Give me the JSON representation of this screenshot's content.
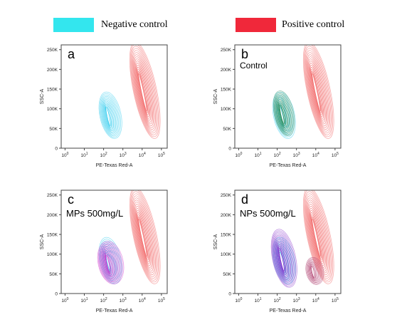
{
  "legend": [
    {
      "label": "Negative control",
      "color": "#33e6ee"
    },
    {
      "label": "Positive control",
      "color": "#f0283a"
    }
  ],
  "chart_data": [
    {
      "type": "contour",
      "panel_letter": "a",
      "annotation": "",
      "xlabel": "PE-Texas Red-A",
      "ylabel": "SSC-A",
      "x_scale": "log",
      "x_ticks": [
        "0",
        "1",
        "2",
        "3",
        "4",
        "5"
      ],
      "x_tick_prefix": "10",
      "y_ticks": [
        "0",
        "50K",
        "100K",
        "150K",
        "200K",
        "250K"
      ],
      "ylim": [
        0,
        262144
      ],
      "series": [
        {
          "color": "#33ccee",
          "center": [
            2.3,
            80000
          ],
          "spread": [
            0.55,
            60000
          ],
          "rings": 11
        },
        {
          "color": "#f26d6d",
          "center": [
            4.1,
            140000
          ],
          "spread": [
            0.6,
            125000
          ],
          "rings": 16
        }
      ]
    },
    {
      "type": "contour",
      "panel_letter": "b",
      "annotation": "Control",
      "xlabel": "PE-Texas Red-A",
      "ylabel": "SSC-A",
      "x_scale": "log",
      "x_ticks": [
        "0",
        "1",
        "2",
        "3",
        "4",
        "5"
      ],
      "x_tick_prefix": "10",
      "y_ticks": [
        "0",
        "50K",
        "100K",
        "150K",
        "200K",
        "250K"
      ],
      "ylim": [
        0,
        262144
      ],
      "series": [
        {
          "color": "#33ccee",
          "center": [
            2.3,
            80000
          ],
          "spread": [
            0.55,
            60000
          ],
          "rings": 9
        },
        {
          "color": "#f26d6d",
          "center": [
            4.1,
            140000
          ],
          "spread": [
            0.6,
            125000
          ],
          "rings": 16
        },
        {
          "color": "#2e8b57",
          "center": [
            2.3,
            85000
          ],
          "spread": [
            0.5,
            58000
          ],
          "rings": 11
        }
      ]
    },
    {
      "type": "contour",
      "panel_letter": "c",
      "annotation": "MPs 500mg/L",
      "xlabel": "PE-Texas Red-A",
      "ylabel": "SSC-A",
      "x_scale": "log",
      "x_ticks": [
        "0",
        "1",
        "2",
        "3",
        "4",
        "5"
      ],
      "x_tick_prefix": "10",
      "y_ticks": [
        "0",
        "50K",
        "100K",
        "150K",
        "200K",
        "250K"
      ],
      "ylim": [
        0,
        262144
      ],
      "series": [
        {
          "color": "#33ccee",
          "center": [
            2.3,
            80000
          ],
          "spread": [
            0.55,
            60000
          ],
          "rings": 9
        },
        {
          "color": "#f26d6d",
          "center": [
            4.1,
            140000
          ],
          "spread": [
            0.6,
            125000
          ],
          "rings": 16
        },
        {
          "color": "#cc33cc",
          "center": [
            2.3,
            75000
          ],
          "spread": [
            0.65,
            55000
          ],
          "rings": 13
        }
      ]
    },
    {
      "type": "contour",
      "panel_letter": "d",
      "annotation": "NPs 500mg/L",
      "xlabel": "PE-Texas Red-A",
      "ylabel": "SSC-A",
      "x_scale": "log",
      "x_ticks": [
        "0",
        "1",
        "2",
        "3",
        "4",
        "5"
      ],
      "x_tick_prefix": "10",
      "y_ticks": [
        "0",
        "50K",
        "100K",
        "150K",
        "200K",
        "250K"
      ],
      "ylim": [
        0,
        262144
      ],
      "series": [
        {
          "color": "#33ccee",
          "center": [
            2.3,
            80000
          ],
          "spread": [
            0.55,
            60000
          ],
          "rings": 9
        },
        {
          "color": "#f26d6d",
          "center": [
            4.1,
            140000
          ],
          "spread": [
            0.6,
            125000
          ],
          "rings": 16
        },
        {
          "color": "#8833cc",
          "center": [
            2.3,
            85000
          ],
          "spread": [
            0.6,
            75000
          ],
          "rings": 14
        },
        {
          "color": "#aa3366",
          "center": [
            3.9,
            55000
          ],
          "spread": [
            0.45,
            35000
          ],
          "rings": 8
        }
      ]
    }
  ]
}
